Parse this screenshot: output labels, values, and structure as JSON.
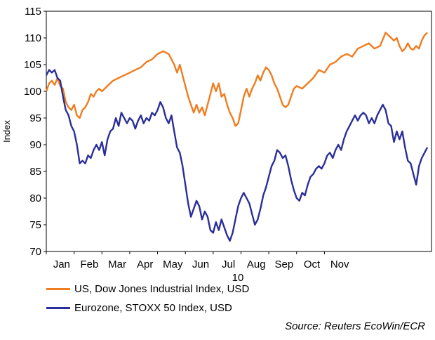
{
  "chart_data": {
    "type": "line",
    "title": "",
    "xlabel": "10",
    "ylabel": "Index",
    "ylim": [
      70,
      115
    ],
    "yticks": [
      70,
      75,
      80,
      85,
      90,
      95,
      100,
      105,
      110,
      115
    ],
    "xticks": [
      "Jan",
      "Feb",
      "Mar",
      "Apr",
      "May",
      "Jun",
      "Jul",
      "Aug",
      "Sep",
      "Oct",
      "Nov"
    ],
    "x_unit": "month index (0 = start of Jan)",
    "source": "Source: Reuters EcoWin/ECR",
    "colors": {
      "us": "#f07c1e",
      "eu": "#2a2e99",
      "axis": "#000000"
    },
    "series": [
      {
        "name": "US, Dow Jones Industrial Index, USD",
        "color_key": "us",
        "points": [
          [
            0.0,
            100.0
          ],
          [
            0.1,
            101.5
          ],
          [
            0.2,
            102.0
          ],
          [
            0.3,
            101.2
          ],
          [
            0.4,
            102.5
          ],
          [
            0.5,
            101.0
          ],
          [
            0.6,
            100.5
          ],
          [
            0.7,
            98.0
          ],
          [
            0.8,
            97.0
          ],
          [
            0.9,
            96.5
          ],
          [
            1.0,
            97.5
          ],
          [
            1.1,
            95.5
          ],
          [
            1.2,
            95.0
          ],
          [
            1.3,
            96.5
          ],
          [
            1.4,
            97.0
          ],
          [
            1.5,
            98.0
          ],
          [
            1.6,
            99.5
          ],
          [
            1.7,
            99.0
          ],
          [
            1.8,
            100.0
          ],
          [
            1.9,
            100.5
          ],
          [
            2.0,
            100.0
          ],
          [
            2.2,
            101.0
          ],
          [
            2.4,
            102.0
          ],
          [
            2.6,
            102.5
          ],
          [
            2.8,
            103.0
          ],
          [
            3.0,
            103.5
          ],
          [
            3.2,
            104.0
          ],
          [
            3.4,
            104.5
          ],
          [
            3.6,
            105.5
          ],
          [
            3.8,
            106.0
          ],
          [
            4.0,
            107.0
          ],
          [
            4.2,
            107.5
          ],
          [
            4.4,
            107.0
          ],
          [
            4.5,
            106.0
          ],
          [
            4.6,
            105.0
          ],
          [
            4.7,
            103.5
          ],
          [
            4.8,
            105.0
          ],
          [
            4.9,
            103.0
          ],
          [
            5.0,
            101.0
          ],
          [
            5.1,
            99.0
          ],
          [
            5.2,
            97.5
          ],
          [
            5.3,
            96.0
          ],
          [
            5.4,
            97.5
          ],
          [
            5.5,
            96.0
          ],
          [
            5.6,
            97.0
          ],
          [
            5.7,
            95.5
          ],
          [
            5.8,
            97.5
          ],
          [
            5.9,
            99.5
          ],
          [
            6.0,
            101.5
          ],
          [
            6.1,
            100.0
          ],
          [
            6.2,
            101.5
          ],
          [
            6.3,
            99.0
          ],
          [
            6.4,
            99.5
          ],
          [
            6.5,
            97.5
          ],
          [
            6.6,
            96.0
          ],
          [
            6.7,
            95.0
          ],
          [
            6.8,
            93.5
          ],
          [
            6.9,
            94.0
          ],
          [
            7.0,
            96.5
          ],
          [
            7.1,
            99.0
          ],
          [
            7.2,
            100.5
          ],
          [
            7.3,
            99.0
          ],
          [
            7.4,
            100.5
          ],
          [
            7.5,
            101.5
          ],
          [
            7.6,
            103.0
          ],
          [
            7.7,
            102.0
          ],
          [
            7.8,
            103.5
          ],
          [
            7.9,
            104.5
          ],
          [
            8.0,
            104.0
          ],
          [
            8.1,
            103.0
          ],
          [
            8.2,
            101.5
          ],
          [
            8.3,
            100.5
          ],
          [
            8.4,
            99.0
          ],
          [
            8.5,
            97.5
          ],
          [
            8.6,
            97.0
          ],
          [
            8.7,
            97.5
          ],
          [
            8.8,
            99.0
          ],
          [
            8.9,
            100.5
          ],
          [
            9.0,
            101.0
          ],
          [
            9.2,
            100.5
          ],
          [
            9.4,
            101.5
          ],
          [
            9.6,
            102.5
          ],
          [
            9.8,
            104.0
          ],
          [
            10.0,
            103.5
          ],
          [
            10.2,
            105.0
          ],
          [
            10.4,
            105.5
          ],
          [
            10.6,
            106.5
          ],
          [
            10.8,
            107.0
          ],
          [
            11.0,
            106.5
          ],
          [
            11.2,
            108.0
          ],
          [
            11.4,
            108.5
          ],
          [
            11.6,
            109.0
          ],
          [
            11.8,
            108.0
          ],
          [
            12.0,
            108.5
          ],
          [
            12.2,
            111.0
          ],
          [
            12.4,
            110.0
          ],
          [
            12.5,
            109.5
          ],
          [
            12.6,
            110.0
          ],
          [
            12.7,
            108.5
          ],
          [
            12.8,
            107.5
          ],
          [
            12.9,
            108.0
          ],
          [
            13.0,
            109.0
          ],
          [
            13.1,
            108.0
          ],
          [
            13.2,
            107.8
          ],
          [
            13.3,
            108.5
          ],
          [
            13.4,
            108.0
          ],
          [
            13.5,
            109.5
          ],
          [
            13.6,
            110.5
          ],
          [
            13.7,
            111.0
          ]
        ]
      },
      {
        "name": "Eurozone, STOXX 50 Index, USD",
        "color_key": "eu",
        "points": [
          [
            0.0,
            103.0
          ],
          [
            0.1,
            104.0
          ],
          [
            0.2,
            103.5
          ],
          [
            0.3,
            104.0
          ],
          [
            0.4,
            102.5
          ],
          [
            0.5,
            102.0
          ],
          [
            0.6,
            99.0
          ],
          [
            0.7,
            96.5
          ],
          [
            0.8,
            95.5
          ],
          [
            0.9,
            93.5
          ],
          [
            1.0,
            92.5
          ],
          [
            1.1,
            90.0
          ],
          [
            1.2,
            86.5
          ],
          [
            1.3,
            87.0
          ],
          [
            1.4,
            86.5
          ],
          [
            1.5,
            88.0
          ],
          [
            1.6,
            87.5
          ],
          [
            1.7,
            89.0
          ],
          [
            1.8,
            90.0
          ],
          [
            1.9,
            89.0
          ],
          [
            2.0,
            90.5
          ],
          [
            2.1,
            88.0
          ],
          [
            2.2,
            91.0
          ],
          [
            2.3,
            92.5
          ],
          [
            2.4,
            93.0
          ],
          [
            2.5,
            95.0
          ],
          [
            2.6,
            93.5
          ],
          [
            2.7,
            96.0
          ],
          [
            2.8,
            95.0
          ],
          [
            2.9,
            94.0
          ],
          [
            3.0,
            95.0
          ],
          [
            3.1,
            94.5
          ],
          [
            3.2,
            93.0
          ],
          [
            3.3,
            94.5
          ],
          [
            3.4,
            95.5
          ],
          [
            3.5,
            94.0
          ],
          [
            3.6,
            95.0
          ],
          [
            3.7,
            94.5
          ],
          [
            3.8,
            96.0
          ],
          [
            3.9,
            95.5
          ],
          [
            4.0,
            96.5
          ],
          [
            4.1,
            98.0
          ],
          [
            4.2,
            97.0
          ],
          [
            4.3,
            95.0
          ],
          [
            4.4,
            94.0
          ],
          [
            4.5,
            95.5
          ],
          [
            4.6,
            92.5
          ],
          [
            4.7,
            89.5
          ],
          [
            4.8,
            88.5
          ],
          [
            4.9,
            86.0
          ],
          [
            5.0,
            82.5
          ],
          [
            5.1,
            79.0
          ],
          [
            5.2,
            76.5
          ],
          [
            5.3,
            78.0
          ],
          [
            5.4,
            79.5
          ],
          [
            5.5,
            78.5
          ],
          [
            5.6,
            76.0
          ],
          [
            5.7,
            77.5
          ],
          [
            5.8,
            76.5
          ],
          [
            5.9,
            74.0
          ],
          [
            6.0,
            73.5
          ],
          [
            6.1,
            75.5
          ],
          [
            6.2,
            74.0
          ],
          [
            6.3,
            76.0
          ],
          [
            6.4,
            74.5
          ],
          [
            6.5,
            73.0
          ],
          [
            6.6,
            72.0
          ],
          [
            6.7,
            73.5
          ],
          [
            6.8,
            76.0
          ],
          [
            6.9,
            78.5
          ],
          [
            7.0,
            80.0
          ],
          [
            7.1,
            81.0
          ],
          [
            7.2,
            80.0
          ],
          [
            7.3,
            79.0
          ],
          [
            7.4,
            77.0
          ],
          [
            7.5,
            75.0
          ],
          [
            7.6,
            76.0
          ],
          [
            7.7,
            78.0
          ],
          [
            7.8,
            80.5
          ],
          [
            7.9,
            82.0
          ],
          [
            8.0,
            84.0
          ],
          [
            8.1,
            86.0
          ],
          [
            8.2,
            87.0
          ],
          [
            8.3,
            89.0
          ],
          [
            8.4,
            88.5
          ],
          [
            8.5,
            87.5
          ],
          [
            8.6,
            88.0
          ],
          [
            8.7,
            86.0
          ],
          [
            8.8,
            83.5
          ],
          [
            8.9,
            81.5
          ],
          [
            9.0,
            80.0
          ],
          [
            9.1,
            79.5
          ],
          [
            9.2,
            81.0
          ],
          [
            9.3,
            80.5
          ],
          [
            9.4,
            82.5
          ],
          [
            9.5,
            84.0
          ],
          [
            9.6,
            84.5
          ],
          [
            9.7,
            85.5
          ],
          [
            9.8,
            86.0
          ],
          [
            9.9,
            85.5
          ],
          [
            10.0,
            86.5
          ],
          [
            10.1,
            88.0
          ],
          [
            10.2,
            88.5
          ],
          [
            10.3,
            87.5
          ],
          [
            10.4,
            89.0
          ],
          [
            10.5,
            90.0
          ],
          [
            10.6,
            89.0
          ],
          [
            10.7,
            91.0
          ],
          [
            10.8,
            92.5
          ],
          [
            10.9,
            93.5
          ],
          [
            11.0,
            94.5
          ],
          [
            11.1,
            95.5
          ],
          [
            11.2,
            94.5
          ],
          [
            11.3,
            95.5
          ],
          [
            11.4,
            96.0
          ],
          [
            11.5,
            95.5
          ],
          [
            11.6,
            94.0
          ],
          [
            11.7,
            95.0
          ],
          [
            11.8,
            94.0
          ],
          [
            11.9,
            95.5
          ],
          [
            12.0,
            96.5
          ],
          [
            12.1,
            97.5
          ],
          [
            12.2,
            96.5
          ],
          [
            12.3,
            94.0
          ],
          [
            12.4,
            93.5
          ],
          [
            12.5,
            90.5
          ],
          [
            12.6,
            92.5
          ],
          [
            12.7,
            91.0
          ],
          [
            12.8,
            92.5
          ],
          [
            12.9,
            89.5
          ],
          [
            13.0,
            87.0
          ],
          [
            13.1,
            86.5
          ],
          [
            13.2,
            84.5
          ],
          [
            13.3,
            82.5
          ],
          [
            13.4,
            86.0
          ],
          [
            13.5,
            87.5
          ],
          [
            13.6,
            88.5
          ],
          [
            13.7,
            89.5
          ]
        ]
      }
    ]
  }
}
